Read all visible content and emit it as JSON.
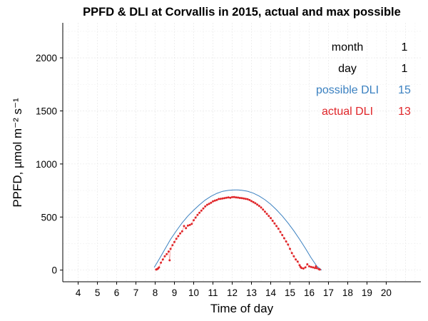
{
  "chart_data": {
    "type": "line",
    "title": "PPFD & DLI at Corvallis in 2015, actual and max possible",
    "xlabel": "Time of day",
    "ylabel": "PPFD, µmol m⁻² s⁻¹",
    "xlim": [
      3.2,
      21.8
    ],
    "ylim": [
      -110,
      2330
    ],
    "x_ticks": [
      4,
      5,
      6,
      7,
      8,
      9,
      10,
      11,
      12,
      13,
      14,
      15,
      16,
      17,
      18,
      19,
      20
    ],
    "y_ticks": [
      0,
      500,
      1000,
      1500,
      2000
    ],
    "grid": true,
    "info_table": [
      {
        "label": "month",
        "value": "1",
        "color": "#000000"
      },
      {
        "label": "day",
        "value": "1",
        "color": "#000000"
      },
      {
        "label": "possible DLI",
        "value": "15",
        "color": "#3a80c0"
      },
      {
        "label": "actual DLI",
        "value": "13",
        "color": "#e0262a"
      }
    ],
    "series": [
      {
        "name": "possible",
        "color": "#3a80c0",
        "x": [
          7.95,
          8.2,
          8.5,
          8.8,
          9.1,
          9.4,
          9.7,
          10.0,
          10.3,
          10.6,
          10.9,
          11.2,
          11.5,
          11.8,
          12.1,
          12.3,
          12.5,
          12.8,
          13.1,
          13.4,
          13.7,
          14.0,
          14.3,
          14.6,
          14.9,
          15.2,
          15.5,
          15.8,
          16.1,
          16.4,
          16.65
        ],
        "y": [
          25,
          100,
          195,
          290,
          370,
          445,
          510,
          565,
          615,
          660,
          695,
          723,
          742,
          751,
          755,
          755,
          752,
          743,
          725,
          698,
          663,
          620,
          568,
          510,
          443,
          370,
          290,
          205,
          115,
          35,
          0
        ]
      },
      {
        "name": "actual",
        "color": "#e0262a",
        "x": [
          8.05,
          8.1,
          8.15,
          8.2,
          8.3,
          8.4,
          8.5,
          8.6,
          8.7,
          8.75,
          8.8,
          8.9,
          9.0,
          9.1,
          9.2,
          9.3,
          9.4,
          9.5,
          9.6,
          9.7,
          9.8,
          9.9,
          10.0,
          10.1,
          10.2,
          10.3,
          10.4,
          10.5,
          10.6,
          10.7,
          10.8,
          10.9,
          11.0,
          11.1,
          11.2,
          11.3,
          11.4,
          11.5,
          11.6,
          11.7,
          11.8,
          11.9,
          12.0,
          12.1,
          12.2,
          12.3,
          12.4,
          12.5,
          12.6,
          12.7,
          12.8,
          12.9,
          13.0,
          13.1,
          13.2,
          13.3,
          13.4,
          13.5,
          13.6,
          13.7,
          13.8,
          13.9,
          14.0,
          14.1,
          14.2,
          14.3,
          14.4,
          14.5,
          14.6,
          14.7,
          14.8,
          14.9,
          15.0,
          15.1,
          15.2,
          15.3,
          15.4,
          15.5,
          15.55,
          15.6,
          15.7,
          15.8,
          15.9,
          16.0,
          16.1,
          16.2,
          16.3,
          16.35,
          16.4,
          16.5,
          16.55
        ],
        "y": [
          5,
          8,
          15,
          25,
          70,
          100,
          130,
          150,
          175,
          92,
          200,
          235,
          265,
          295,
          320,
          345,
          365,
          415,
          395,
          420,
          425,
          435,
          470,
          495,
          520,
          540,
          560,
          580,
          600,
          615,
          625,
          635,
          648,
          655,
          660,
          670,
          672,
          675,
          678,
          682,
          685,
          682,
          687,
          688,
          685,
          683,
          680,
          678,
          675,
          672,
          668,
          660,
          650,
          640,
          630,
          618,
          605,
          590,
          570,
          550,
          530,
          510,
          490,
          465,
          440,
          415,
          390,
          360,
          330,
          300,
          270,
          240,
          200,
          160,
          130,
          100,
          80,
          45,
          30,
          20,
          15,
          25,
          55,
          35,
          30,
          25,
          20,
          35,
          18,
          8,
          5
        ]
      }
    ]
  }
}
